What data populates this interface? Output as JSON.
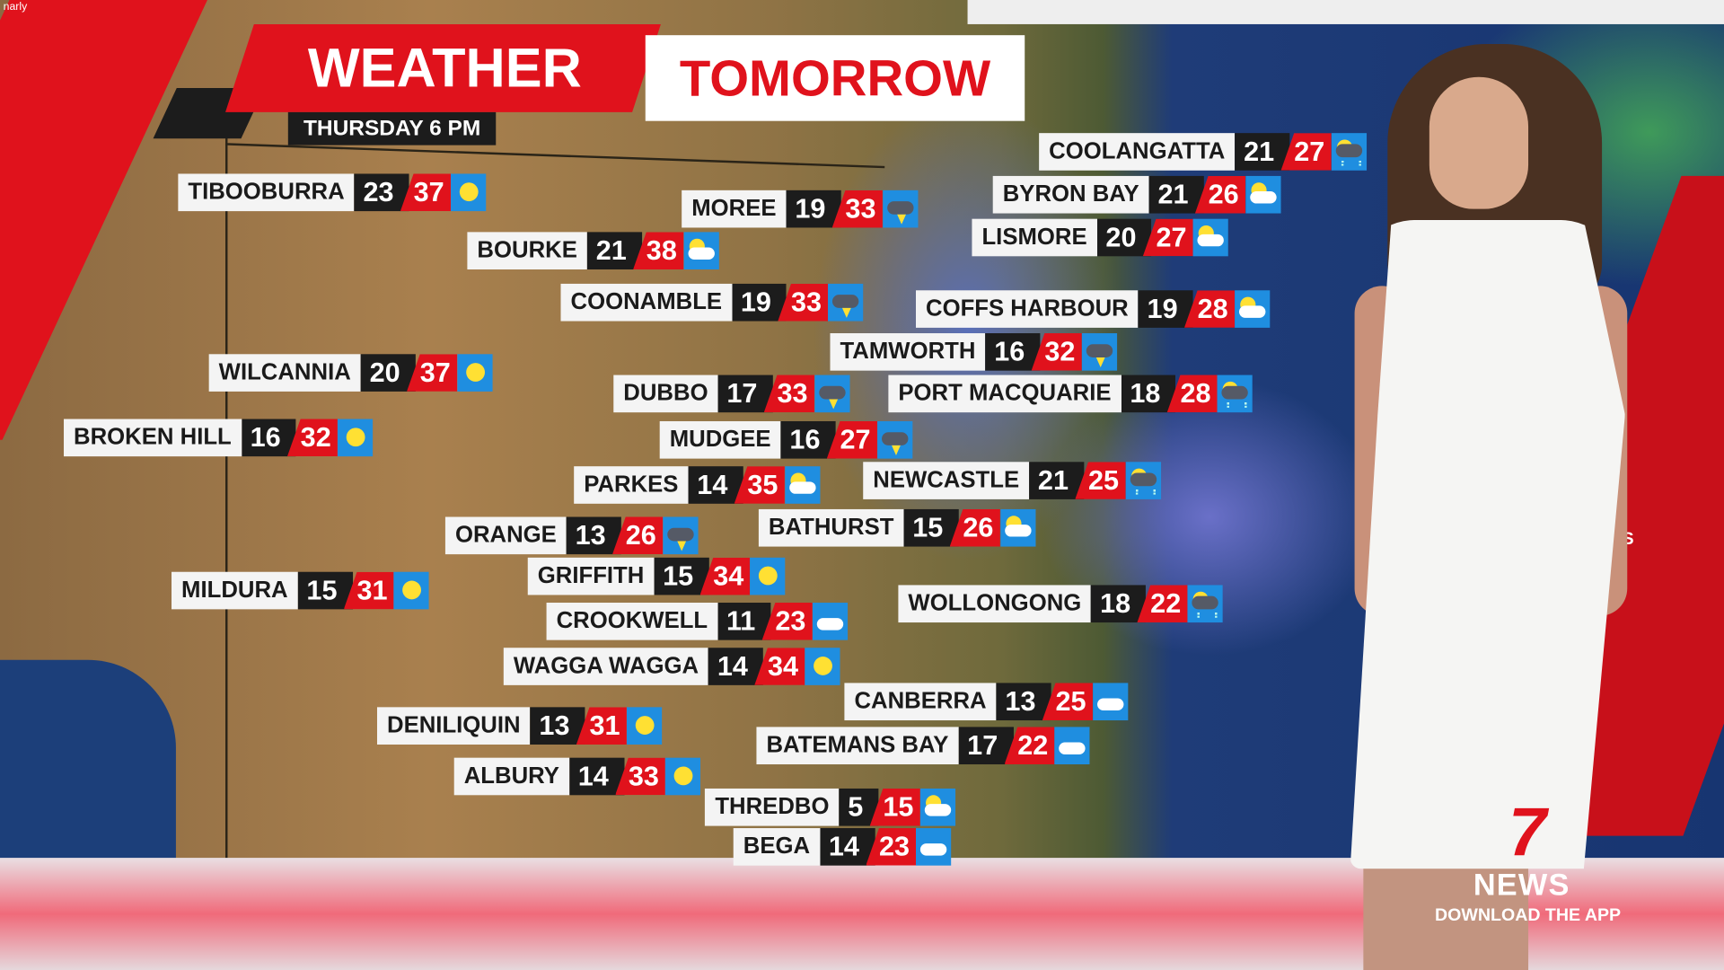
{
  "watermark": "narly",
  "header": {
    "title_part1": "WEATHER",
    "title_part2": "TOMORROW",
    "subtitle": "THURSDAY 6 PM"
  },
  "colors": {
    "brand_red": "#e0121c",
    "icon_blue": "#1f8ee0",
    "dark": "#1c1c1c"
  },
  "cities": [
    {
      "name": "TIBOOBURRA",
      "min": "23",
      "max": "37",
      "icon": "sun-icon"
    },
    {
      "name": "MOREE",
      "min": "19",
      "max": "33",
      "icon": "storm-icon"
    },
    {
      "name": "BOURKE",
      "min": "21",
      "max": "38",
      "icon": "partly-cloudy-icon"
    },
    {
      "name": "COONAMBLE",
      "min": "19",
      "max": "33",
      "icon": "storm-icon"
    },
    {
      "name": "WILCANNIA",
      "min": "20",
      "max": "37",
      "icon": "sun-icon"
    },
    {
      "name": "BROKEN HILL",
      "min": "16",
      "max": "32",
      "icon": "sun-icon"
    },
    {
      "name": "DUBBO",
      "min": "17",
      "max": "33",
      "icon": "storm-icon"
    },
    {
      "name": "MUDGEE",
      "min": "16",
      "max": "27",
      "icon": "storm-icon"
    },
    {
      "name": "PARKES",
      "min": "14",
      "max": "35",
      "icon": "partly-cloudy-icon"
    },
    {
      "name": "ORANGE",
      "min": "13",
      "max": "26",
      "icon": "storm-icon"
    },
    {
      "name": "MILDURA",
      "min": "15",
      "max": "31",
      "icon": "sun-icon"
    },
    {
      "name": "GRIFFITH",
      "min": "15",
      "max": "34",
      "icon": "sun-icon"
    },
    {
      "name": "CROOKWELL",
      "min": "11",
      "max": "23",
      "icon": "cloud-icon"
    },
    {
      "name": "WAGGA WAGGA",
      "min": "14",
      "max": "34",
      "icon": "sun-icon"
    },
    {
      "name": "DENILIQUIN",
      "min": "13",
      "max": "31",
      "icon": "sun-icon"
    },
    {
      "name": "ALBURY",
      "min": "14",
      "max": "33",
      "icon": "sun-icon"
    },
    {
      "name": "THREDBO",
      "min": "5",
      "max": "15",
      "icon": "partly-cloudy-icon"
    },
    {
      "name": "BEGA",
      "min": "14",
      "max": "23",
      "icon": "cloud-icon"
    },
    {
      "name": "COOLANGATTA",
      "min": "21",
      "max": "27",
      "icon": "showers-icon"
    },
    {
      "name": "BYRON BAY",
      "min": "21",
      "max": "26",
      "icon": "partly-cloudy-icon"
    },
    {
      "name": "LISMORE",
      "min": "20",
      "max": "27",
      "icon": "partly-cloudy-icon"
    },
    {
      "name": "COFFS HARBOUR",
      "min": "19",
      "max": "28",
      "icon": "partly-cloudy-icon"
    },
    {
      "name": "TAMWORTH",
      "min": "16",
      "max": "32",
      "icon": "storm-icon"
    },
    {
      "name": "PORT MACQUARIE",
      "min": "18",
      "max": "28",
      "icon": "showers-icon"
    },
    {
      "name": "NEWCASTLE",
      "min": "21",
      "max": "25",
      "icon": "showers-icon"
    },
    {
      "name": "BATHURST",
      "min": "15",
      "max": "26",
      "icon": "partly-cloudy-icon"
    },
    {
      "name": "WOLLONGONG",
      "min": "18",
      "max": "22",
      "icon": "showers-icon"
    },
    {
      "name": "CANBERRA",
      "min": "13",
      "max": "25",
      "icon": "cloud-icon"
    },
    {
      "name": "BATEMANS BAY",
      "min": "17",
      "max": "22",
      "icon": "cloud-icon"
    }
  ],
  "logo": {
    "mark": "7",
    "name": "NEWS",
    "tagline": "DOWNLOAD THE APP"
  },
  "wall_text": "NEWS"
}
